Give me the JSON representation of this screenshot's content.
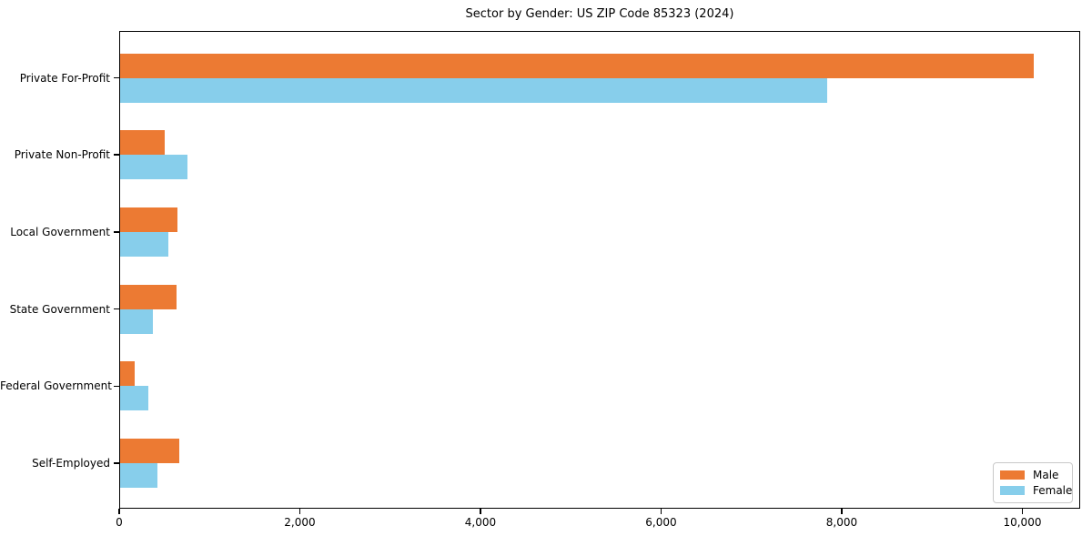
{
  "figure": {
    "title": "Sector by Gender: US ZIP Code 85323 (2024)",
    "background": "#ffffff"
  },
  "chart_data": {
    "type": "bar",
    "orientation": "horizontal",
    "title": "Sector by Gender: US ZIP Code 85323 (2024)",
    "categories": [
      "Private For-Profit",
      "Private Non-Profit",
      "Local Government",
      "State Government",
      "Federal Government",
      "Self-Employed"
    ],
    "series": [
      {
        "name": "Male",
        "color": "#ec7a33",
        "values": [
          10130,
          500,
          640,
          630,
          175,
          660
        ]
      },
      {
        "name": "Female",
        "color": "#87ceeb",
        "values": [
          7840,
          760,
          540,
          370,
          325,
          425
        ]
      }
    ],
    "xlabel": "",
    "ylabel": "",
    "xlim": [
      0,
      10640
    ],
    "x_ticks": [
      0,
      2000,
      4000,
      6000,
      8000,
      10000
    ],
    "x_tick_labels": [
      "0",
      "2,000",
      "4,000",
      "6,000",
      "8,000",
      "10,000"
    ],
    "grid": false,
    "legend": {
      "position": "lower-right",
      "entries": [
        "Male",
        "Female"
      ]
    },
    "colors": {
      "spine": "#000000",
      "tick": "#000000",
      "legend_border": "#c9c9c9"
    }
  }
}
